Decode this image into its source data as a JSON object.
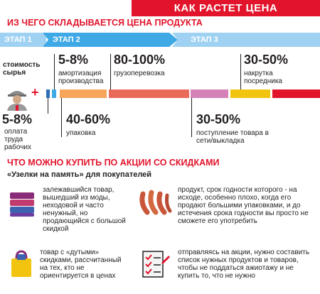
{
  "header": {
    "title": "КАК РАСТЕТ ЦЕНА"
  },
  "section1": {
    "title": "ИЗ ЧЕГО СКЛАДЫВАЕТСЯ ЦЕНА ПРОДУКТА"
  },
  "stages": [
    "ЭТАП 1",
    "ЭТАП 2",
    "ЭТАП 3"
  ],
  "diagram": {
    "raw_label": "стоимость сырья",
    "plus": "+",
    "labor_pct": "5-8%",
    "labor_label": "оплата труда рабочих",
    "amort_pct": "5-8%",
    "amort_label": "амортизация производства",
    "cargo_pct": "80-100%",
    "cargo_label": "грузоперевозка",
    "markup_pct": "30-50%",
    "markup_label": "накрутка посредника",
    "pack_pct": "40-60%",
    "pack_label": "упаковка",
    "shelf_pct": "30-50%",
    "shelf_label": "поступление товара в сети/выкладка",
    "colors": {
      "blue_dark": "#2b6fb6",
      "blue": "#3fa9e6",
      "orange": "#f6a55a",
      "coral": "#ea6a5a",
      "pink": "#d482b8",
      "yellow": "#f2c40f",
      "red": "#e1142b"
    }
  },
  "section2": {
    "title": "ЧТО МОЖНО КУПИТЬ ПО АКЦИИ СО СКИДКАМИ",
    "subtitle": "«Узелки на память» для покупателей"
  },
  "items": [
    {
      "icon": "clothes-stack-icon",
      "text": "залежавшийся товар, вышедший из моды, неходовой и часто ненужный, но продающийся с большой скидкой"
    },
    {
      "icon": "sausages-icon",
      "text": "продукт, срок годности которого - на исходе, особенно плохо, когда его продают большими упаковками, и до истечения срока годности вы просто не сможете его употребить"
    },
    {
      "icon": "shopping-bag-icon",
      "text": "товар с «дутыми» скидками, рассчитанный на тех, кто не ориентируется в ценах"
    },
    {
      "icon": "checklist-icon",
      "text": "отправляясь на акции, нужно составить список нужных продуктов и товаров, чтобы не поддаться ажиотажу и не купить то, что не нужно"
    }
  ]
}
